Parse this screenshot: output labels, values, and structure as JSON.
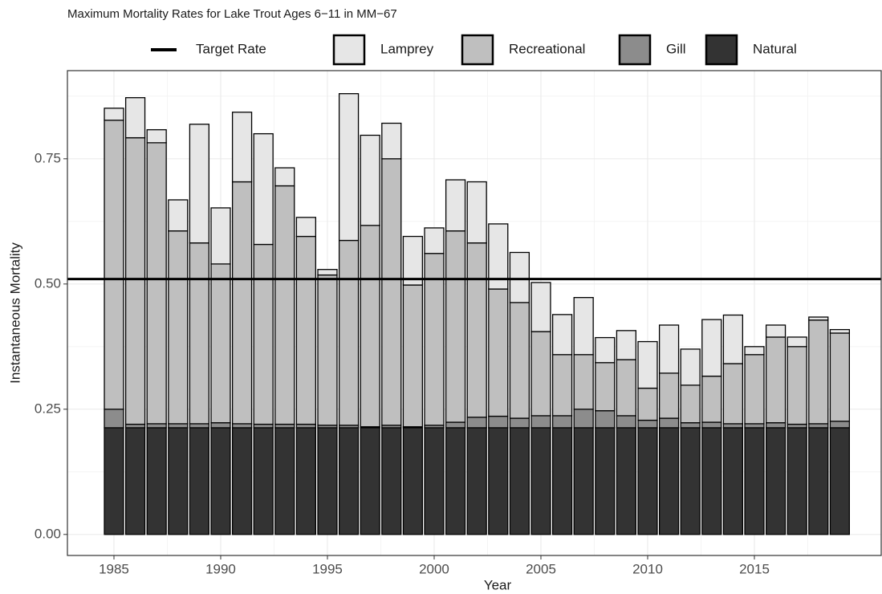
{
  "chart_data": {
    "type": "stacked-bar",
    "title": "Maximum Mortality Rates for Lake Trout Ages 6−11 in MM−67",
    "x_label": "Year",
    "y_label": "Instantaneous Mortality",
    "x": [
      1985,
      1986,
      1987,
      1988,
      1989,
      1990,
      1991,
      1992,
      1993,
      1994,
      1995,
      1996,
      1997,
      1998,
      1999,
      2000,
      2001,
      2002,
      2003,
      2004,
      2005,
      2006,
      2007,
      2008,
      2009,
      2010,
      2011,
      2012,
      2013,
      2014,
      2015,
      2016,
      2017,
      2018,
      2019
    ],
    "series": [
      {
        "name": "Lamprey",
        "color": "#e6e6e6",
        "values": [
          0.024,
          0.08,
          0.026,
          0.062,
          0.237,
          0.112,
          0.139,
          0.221,
          0.036,
          0.038,
          0.011,
          0.293,
          0.18,
          0.071,
          0.097,
          0.051,
          0.102,
          0.122,
          0.13,
          0.1,
          0.098,
          0.08,
          0.114,
          0.05,
          0.058,
          0.093,
          0.096,
          0.072,
          0.113,
          0.097,
          0.016,
          0.024,
          0.019,
          0.006,
          0.007
        ]
      },
      {
        "name": "Recreational",
        "color": "#bfbfbf",
        "values": [
          0.577,
          0.572,
          0.561,
          0.385,
          0.361,
          0.317,
          0.483,
          0.359,
          0.476,
          0.375,
          0.3,
          0.369,
          0.402,
          0.532,
          0.283,
          0.343,
          0.382,
          0.348,
          0.254,
          0.231,
          0.168,
          0.122,
          0.109,
          0.096,
          0.112,
          0.064,
          0.09,
          0.075,
          0.092,
          0.12,
          0.138,
          0.171,
          0.155,
          0.207,
          0.176
        ]
      },
      {
        "name": "Gill",
        "color": "#8c8c8c",
        "values": [
          0.037,
          0.007,
          0.008,
          0.008,
          0.008,
          0.01,
          0.008,
          0.007,
          0.007,
          0.007,
          0.005,
          0.005,
          0.002,
          0.005,
          0.002,
          0.005,
          0.011,
          0.021,
          0.023,
          0.019,
          0.024,
          0.024,
          0.037,
          0.034,
          0.024,
          0.015,
          0.019,
          0.01,
          0.011,
          0.008,
          0.008,
          0.01,
          0.007,
          0.008,
          0.013
        ]
      },
      {
        "name": "Natural",
        "color": "#333333",
        "values": [
          0.213,
          0.213,
          0.213,
          0.213,
          0.213,
          0.213,
          0.213,
          0.213,
          0.213,
          0.213,
          0.213,
          0.213,
          0.213,
          0.213,
          0.213,
          0.213,
          0.213,
          0.213,
          0.213,
          0.213,
          0.213,
          0.213,
          0.213,
          0.213,
          0.213,
          0.213,
          0.213,
          0.213,
          0.213,
          0.213,
          0.213,
          0.213,
          0.213,
          0.213,
          0.213
        ]
      }
    ],
    "target_line": {
      "name": "Target Rate",
      "value": 0.51,
      "color": "#000000"
    },
    "xlim": [
      1982.82,
      2020.94
    ],
    "xticks": [
      1985,
      1990,
      1995,
      2000,
      2005,
      2010,
      2015
    ],
    "ylim": [
      -0.042,
      0.926
    ],
    "yticks": [
      {
        "value": 0,
        "label": "0.00"
      },
      {
        "value": 0.25,
        "label": "0.25"
      },
      {
        "value": 0.5,
        "label": "0.50"
      },
      {
        "value": 0.75,
        "label": "0.75"
      }
    ],
    "grid": true,
    "legend_position": "top"
  }
}
